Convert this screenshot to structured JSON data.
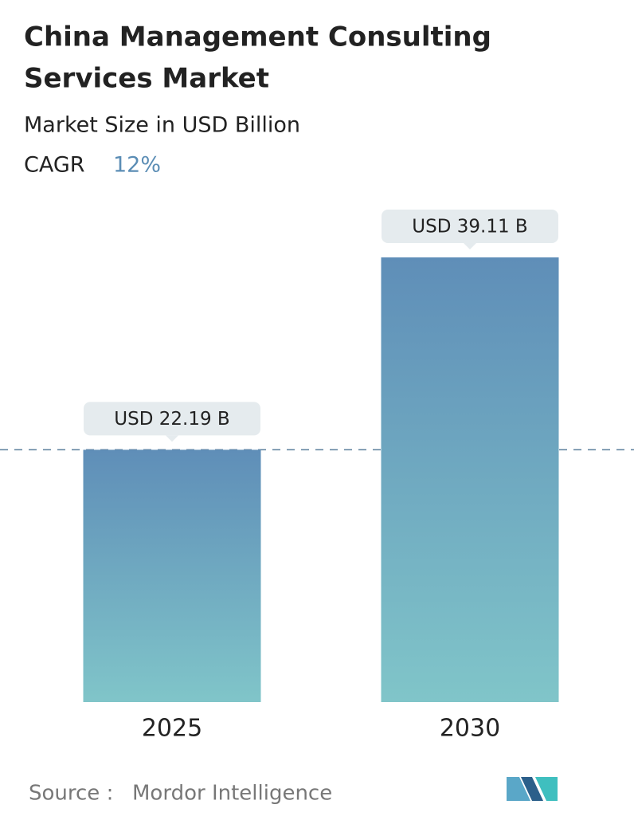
{
  "chart_data": {
    "type": "bar",
    "title_lines": [
      "China Management Consulting",
      "Services Market"
    ],
    "subtitle": "Market Size in USD Billion",
    "cagr_label": "CAGR",
    "cagr_value": "12%",
    "categories": [
      "2025",
      "2030"
    ],
    "values": [
      22.19,
      39.11
    ],
    "value_labels": [
      "USD 22.19 B",
      "USD 39.11 B"
    ],
    "color_top": "#5f8eb8",
    "color_bottom": "#80c5c9",
    "source_label": "Source :",
    "source": "Mordor Intelligence"
  }
}
